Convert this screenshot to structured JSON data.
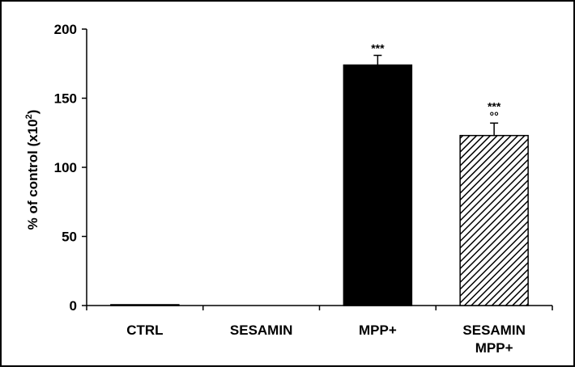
{
  "chart_data": {
    "type": "bar",
    "ylabel": "% of control (x10",
    "ylabel_superscript": "2",
    "ylabel_close": ")",
    "ylim": [
      0,
      200
    ],
    "yticks": [
      0,
      50,
      100,
      150,
      200
    ],
    "categories": [
      {
        "lines": [
          "CTRL"
        ]
      },
      {
        "lines": [
          "SESAMIN"
        ]
      },
      {
        "lines": [
          "MPP+"
        ]
      },
      {
        "lines": [
          "SESAMIN",
          "MPP+"
        ]
      }
    ],
    "values": [
      0.6,
      0,
      174,
      123
    ],
    "errors": [
      0,
      0,
      7,
      9
    ],
    "bar_fills": [
      "black",
      "black",
      "black",
      "hatch"
    ],
    "annotations": [
      {
        "index": 2,
        "lines": [
          "***"
        ]
      },
      {
        "index": 3,
        "lines": [
          "***",
          "°°"
        ]
      }
    ],
    "grid": false,
    "colors": {
      "bar": "#000000",
      "frame": "#000000",
      "background": "#ffffff"
    }
  }
}
